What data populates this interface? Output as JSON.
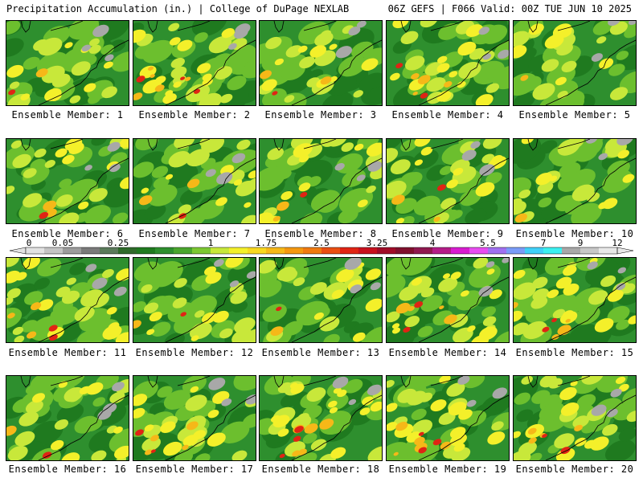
{
  "header": {
    "left": "Precipitation Accumulation (in.) | College of DuPage NEXLAB",
    "right": "06Z GEFS | F066 Valid: 00Z TUE JUN 10 2025"
  },
  "members": [
    {
      "caption": "Ensemble Member: 1",
      "seed": 11,
      "hot": 0.2
    },
    {
      "caption": "Ensemble Member: 2",
      "seed": 23,
      "hot": 0.9
    },
    {
      "caption": "Ensemble Member: 3",
      "seed": 37,
      "hot": 0.3
    },
    {
      "caption": "Ensemble Member: 4",
      "seed": 41,
      "hot": 0.6
    },
    {
      "caption": "Ensemble Member: 5",
      "seed": 53,
      "hot": 0.1
    },
    {
      "caption": "Ensemble Member: 6",
      "seed": 67,
      "hot": 0.3
    },
    {
      "caption": "Ensemble Member: 7",
      "seed": 71,
      "hot": 0.3
    },
    {
      "caption": "Ensemble Member: 8",
      "seed": 83,
      "hot": 0.4
    },
    {
      "caption": "Ensemble Member: 9",
      "seed": 97,
      "hot": 0.4
    },
    {
      "caption": "Ensemble Member: 10",
      "seed": 101,
      "hot": 0.1
    },
    {
      "caption": "Ensemble Member: 11",
      "seed": 113,
      "hot": 0.5
    },
    {
      "caption": "Ensemble Member: 12",
      "seed": 127,
      "hot": 0.2
    },
    {
      "caption": "Ensemble Member: 13",
      "seed": 131,
      "hot": 0.2
    },
    {
      "caption": "Ensemble Member: 14",
      "seed": 149,
      "hot": 0.6
    },
    {
      "caption": "Ensemble Member: 15",
      "seed": 157,
      "hot": 0.7
    },
    {
      "caption": "Ensemble Member: 16",
      "seed": 163,
      "hot": 0.2
    },
    {
      "caption": "Ensemble Member: 17",
      "seed": 179,
      "hot": 0.7
    },
    {
      "caption": "Ensemble Member: 18",
      "seed": 181,
      "hot": 0.9
    },
    {
      "caption": "Ensemble Member: 19",
      "seed": 191,
      "hot": 0.9
    },
    {
      "caption": "Ensemble Member: 20",
      "seed": 197,
      "hot": 0.6
    }
  ],
  "legend": {
    "labels": [
      "0",
      "0.05",
      "0.25",
      "1",
      "1.75",
      "2.5",
      "3.25",
      "4",
      "5.5",
      "7",
      "9",
      "12"
    ],
    "colors": [
      "#e2e2e2",
      "#c4c4c4",
      "#9c9c9c",
      "#7a7a7a",
      "#5a7a5a",
      "#2f6a2a",
      "#1f7a1f",
      "#2e8f2e",
      "#4aa62e",
      "#7cc832",
      "#c8e83a",
      "#f4f02a",
      "#f8d820",
      "#f6b818",
      "#f49810",
      "#f07a10",
      "#ea4e12",
      "#e02414",
      "#c8101e",
      "#a00c28",
      "#80102e",
      "#901850",
      "#b41c88",
      "#d81cd0",
      "#e84cf0",
      "#a070f0",
      "#7a9cf8",
      "#40d0f8",
      "#3cf0f0",
      "#a8a8a8",
      "#c8c8c8",
      "#e8e8e8"
    ],
    "tick_positions": [
      0,
      2,
      5,
      10,
      13,
      16,
      19,
      22,
      25,
      28,
      30,
      32
    ]
  },
  "palette": {
    "gray": "#a8a8a8",
    "dark_green": "#1f7a1f",
    "green": "#2e8f2e",
    "light_green": "#6cbf2e",
    "yellow_green": "#c8e83a",
    "yellow": "#f4f02a",
    "orange": "#f6b818",
    "red": "#e02414",
    "dark_red": "#a00c28"
  }
}
